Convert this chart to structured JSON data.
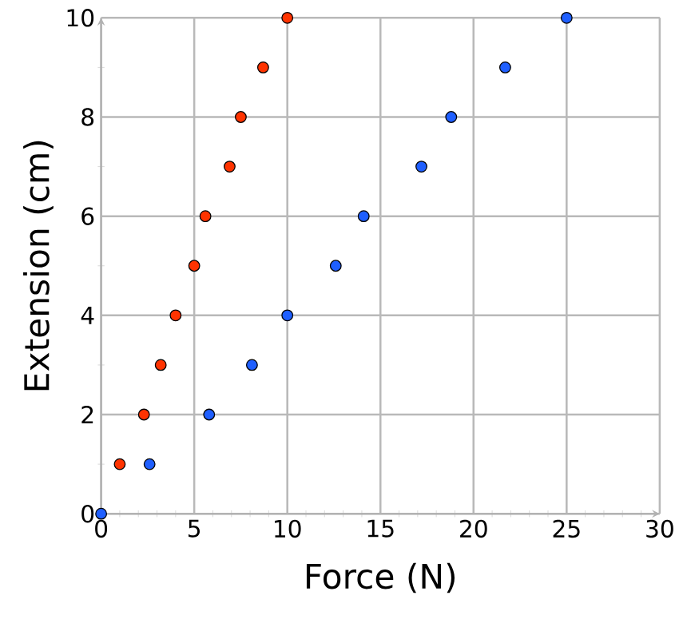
{
  "chart_data": {
    "type": "scatter",
    "xlabel": "Force (N)",
    "ylabel": "Extension (cm)",
    "xlim": [
      0,
      30
    ],
    "ylim": [
      0,
      10
    ],
    "xticks": [
      0,
      5,
      10,
      15,
      20,
      25,
      30
    ],
    "yticks": [
      0,
      2,
      4,
      6,
      8,
      10
    ],
    "grid": true,
    "marker": "circle",
    "series": [
      {
        "color": "#ff3300",
        "x": [
          1.0,
          2.3,
          3.2,
          4.0,
          5.0,
          5.6,
          6.9,
          7.5,
          8.7,
          10.0
        ],
        "values": [
          1,
          2,
          3,
          4,
          5,
          6,
          7,
          8,
          9,
          10
        ]
      },
      {
        "color": "#1f5fff",
        "x": [
          0,
          2.6,
          5.8,
          8.1,
          10.0,
          12.6,
          14.1,
          17.2,
          18.8,
          21.7,
          25.0
        ],
        "values": [
          0,
          1,
          2,
          3,
          4,
          5,
          6,
          7,
          8,
          9,
          10
        ]
      }
    ]
  }
}
